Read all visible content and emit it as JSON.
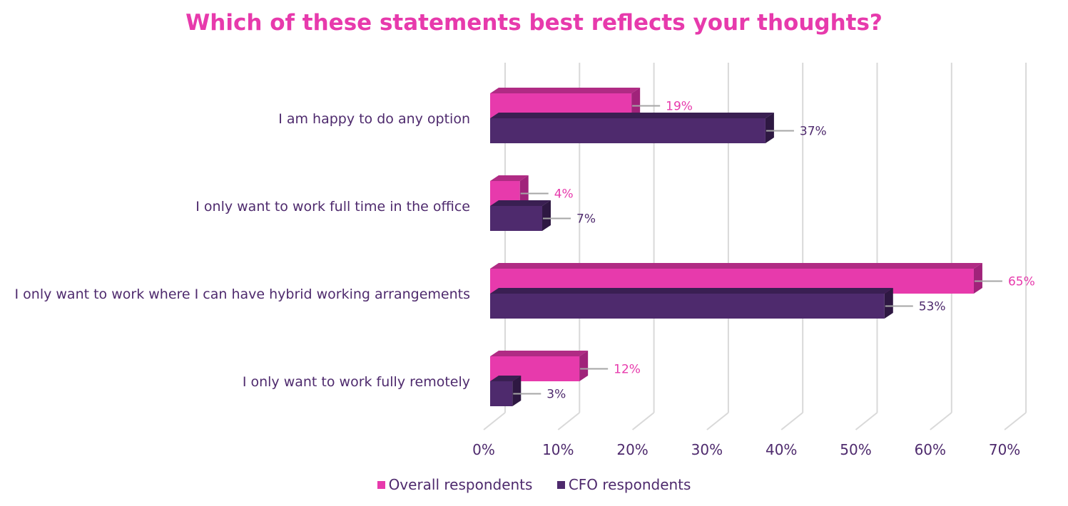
{
  "chart_data": {
    "type": "bar",
    "orientation": "horizontal",
    "title": "Which of these statements best reflects your thoughts?",
    "categories": [
      "I am happy to do any option",
      "I only want to work full time in the office",
      "I only want to work where I can have hybrid working arrangements",
      "I only want to work fully remotely"
    ],
    "series": [
      {
        "name": "Overall respondents",
        "values": [
          19,
          4,
          65,
          12
        ],
        "labels": [
          "19%",
          "4%",
          "65%",
          "12%"
        ],
        "color": "#e73aac",
        "top_color": "#b02b84",
        "side_color": "#a0237a"
      },
      {
        "name": "CFO respondents",
        "values": [
          37,
          7,
          53,
          3
        ],
        "labels": [
          "37%",
          "7%",
          "53%",
          "3%"
        ],
        "color": "#4e2a6d",
        "top_color": "#3a1f52",
        "side_color": "#2e1842"
      }
    ],
    "xlim": [
      0,
      70
    ],
    "x_ticks": [
      "0%",
      "10%",
      "20%",
      "30%",
      "40%",
      "50%",
      "60%",
      "70%"
    ],
    "grid": true,
    "legend_position": "bottom"
  },
  "colors": {
    "title": "#e73aac",
    "category_label": "#4e2a6d",
    "tick_label": "#4e2a6d",
    "grid": "#d9d9d9",
    "leader_line": "#a6a6a6"
  }
}
